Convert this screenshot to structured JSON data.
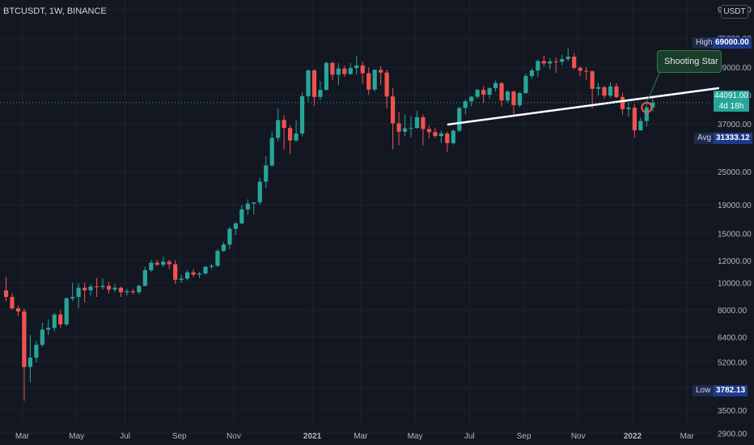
{
  "header": {
    "symbol": "BTCUSDT, 1W, BINANCE",
    "currency_button": "USDT"
  },
  "tags": {
    "high_label": "High",
    "high_value": "69000.00",
    "avg_label": "Avg",
    "avg_value": "31333.12",
    "low_label": "Low",
    "low_value": "3782.13",
    "current_price": "44091.00",
    "countdown": "4d 18h"
  },
  "annotation": {
    "callout_text": "Shooting Star"
  },
  "colors": {
    "up": "#26a69a",
    "down": "#ef5350",
    "background": "#131722",
    "trendline": "#ffffff"
  },
  "chart_data": {
    "type": "candlestick",
    "title": "BTCUSDT, 1W, BINANCE",
    "y_scale": "log",
    "ylim": [
      2700,
      100000
    ],
    "y_ticks": [
      95000,
      75000,
      59000,
      47000,
      37000,
      25000,
      19000,
      15000,
      12000,
      10000,
      8000,
      6400,
      5200,
      4200,
      3500,
      2900
    ],
    "x_ticks": [
      "Mar",
      "May",
      "Jul",
      "Sep",
      "Nov",
      "2021",
      "Mar",
      "May",
      "Jul",
      "Sep",
      "Nov",
      "2022",
      "Mar"
    ],
    "candles": [
      [
        9400,
        10500,
        8600,
        8900
      ],
      [
        8900,
        9200,
        8000,
        8100
      ],
      [
        8100,
        8300,
        7600,
        7900
      ],
      [
        7900,
        8100,
        3782,
        5000
      ],
      [
        5000,
        6500,
        4400,
        5400
      ],
      [
        5400,
        6200,
        5200,
        6000
      ],
      [
        6000,
        7200,
        5900,
        6800
      ],
      [
        6800,
        7400,
        6500,
        6900
      ],
      [
        6900,
        7800,
        6700,
        7700
      ],
      [
        7700,
        8000,
        6900,
        7100
      ],
      [
        7100,
        8900,
        7000,
        8800
      ],
      [
        8800,
        10000,
        8600,
        8900
      ],
      [
        8900,
        9950,
        8100,
        9600
      ],
      [
        9600,
        10000,
        8500,
        9400
      ],
      [
        9400,
        9900,
        9000,
        9700
      ],
      [
        9700,
        10400,
        8900,
        9650
      ],
      [
        9650,
        10380,
        9450,
        9750
      ],
      [
        9750,
        10050,
        9150,
        9460
      ],
      [
        9460,
        9900,
        9230,
        9600
      ],
      [
        9600,
        9700,
        8900,
        9250
      ],
      [
        9250,
        9500,
        9000,
        9330
      ],
      [
        9330,
        9500,
        9100,
        9250
      ],
      [
        9250,
        9850,
        9100,
        9750
      ],
      [
        9750,
        11400,
        9700,
        11100
      ],
      [
        11100,
        12100,
        10900,
        11800
      ],
      [
        11800,
        12080,
        11500,
        11600
      ],
      [
        11600,
        12400,
        11400,
        11900
      ],
      [
        11900,
        12100,
        11200,
        11650
      ],
      [
        11650,
        12050,
        9900,
        10250
      ],
      [
        10250,
        10700,
        10000,
        10350
      ],
      [
        10350,
        11100,
        10200,
        10900
      ],
      [
        10900,
        11180,
        10500,
        10700
      ],
      [
        10700,
        10950,
        10400,
        10800
      ],
      [
        10800,
        11500,
        10700,
        11400
      ],
      [
        11400,
        11700,
        11200,
        11500
      ],
      [
        11500,
        13200,
        11400,
        13000
      ],
      [
        13000,
        14000,
        12900,
        13700
      ],
      [
        13700,
        15900,
        13200,
        15600
      ],
      [
        15600,
        16500,
        14800,
        16300
      ],
      [
        16300,
        19000,
        16200,
        18300
      ],
      [
        18300,
        19900,
        17500,
        19200
      ],
      [
        19200,
        19400,
        17600,
        19400
      ],
      [
        19400,
        23800,
        19000,
        23000
      ],
      [
        23000,
        28400,
        21900,
        26300
      ],
      [
        26300,
        34800,
        26000,
        33000
      ],
      [
        33000,
        42000,
        32000,
        38200
      ],
      [
        38200,
        39700,
        30000,
        35800
      ],
      [
        35800,
        36600,
        28900,
        32300
      ],
      [
        32300,
        38100,
        32000,
        34200
      ],
      [
        34200,
        48000,
        33400,
        46500
      ],
      [
        46500,
        58000,
        44500,
        57500
      ],
      [
        57500,
        58300,
        43000,
        46200
      ],
      [
        46200,
        52600,
        45000,
        49000
      ],
      [
        49000,
        61800,
        48600,
        61200
      ],
      [
        61200,
        61700,
        53000,
        55500
      ],
      [
        55500,
        61000,
        51000,
        58400
      ],
      [
        58400,
        59800,
        54500,
        55800
      ],
      [
        55800,
        61000,
        55500,
        58600
      ],
      [
        58600,
        64850,
        55500,
        59900
      ],
      [
        59900,
        61800,
        51500,
        56200
      ],
      [
        56200,
        58900,
        47000,
        49100
      ],
      [
        49100,
        58000,
        48300,
        57800
      ],
      [
        57800,
        59600,
        51000,
        56500
      ],
      [
        56500,
        57900,
        42000,
        46400
      ],
      [
        46400,
        49700,
        30000,
        37200
      ],
      [
        37200,
        40800,
        31100,
        34700
      ],
      [
        34700,
        40000,
        33400,
        35700
      ],
      [
        35700,
        39500,
        33200,
        35800
      ],
      [
        35800,
        41300,
        35600,
        39100
      ],
      [
        39100,
        40000,
        31000,
        35500
      ],
      [
        35500,
        36500,
        32700,
        34600
      ],
      [
        34600,
        35900,
        33000,
        33500
      ],
      [
        33500,
        35000,
        31600,
        34200
      ],
      [
        34200,
        34700,
        29300,
        31600
      ],
      [
        31600,
        35400,
        31200,
        35000
      ],
      [
        35000,
        42600,
        34600,
        42200
      ],
      [
        42200,
        45300,
        40000,
        44600
      ],
      [
        44600,
        46500,
        42800,
        46300
      ],
      [
        46300,
        49400,
        45600,
        49000
      ],
      [
        49000,
        50500,
        44000,
        47100
      ],
      [
        47100,
        50000,
        45600,
        49700
      ],
      [
        49700,
        52900,
        48300,
        51800
      ],
      [
        51800,
        52200,
        42800,
        44900
      ],
      [
        44900,
        48900,
        44000,
        48300
      ],
      [
        48300,
        48800,
        39600,
        43200
      ],
      [
        43200,
        48300,
        42500,
        47700
      ],
      [
        47700,
        56000,
        47500,
        54900
      ],
      [
        54900,
        58500,
        53600,
        57500
      ],
      [
        57500,
        62900,
        54500,
        62100
      ],
      [
        62100,
        65000,
        59400,
        60900
      ],
      [
        60900,
        63700,
        58100,
        61900
      ],
      [
        61900,
        64000,
        56400,
        61800
      ],
      [
        61800,
        65400,
        60000,
        63100
      ],
      [
        63100,
        69000,
        62000,
        64400
      ],
      [
        64400,
        66300,
        58000,
        58700
      ],
      [
        58700,
        59600,
        54700,
        57300
      ],
      [
        57300,
        59200,
        53200,
        57100
      ],
      [
        57100,
        57400,
        42000,
        49400
      ],
      [
        49400,
        51900,
        46700,
        50100
      ],
      [
        50100,
        50600,
        45600,
        46700
      ],
      [
        46700,
        52100,
        45900,
        50400
      ],
      [
        50400,
        51700,
        45700,
        46200
      ],
      [
        46200,
        47900,
        39900,
        41800
      ],
      [
        41800,
        44200,
        39300,
        42300
      ],
      [
        42300,
        43500,
        33000,
        35100
      ],
      [
        35100,
        38900,
        35000,
        37900
      ],
      [
        37900,
        44800,
        36200,
        42400
      ],
      [
        42400,
        45800,
        41000,
        44091
      ]
    ],
    "trendlines": [
      {
        "from": {
          "week": 73,
          "price": 36800
        },
        "to": {
          "week": 118,
          "price": 49700
        }
      }
    ],
    "annotations": [
      {
        "text": "Shooting Star",
        "week": 106,
        "price": 44091
      }
    ],
    "current_price": 44091.0,
    "high": 69000.0,
    "low": 3782.13,
    "average": 31333.12
  }
}
